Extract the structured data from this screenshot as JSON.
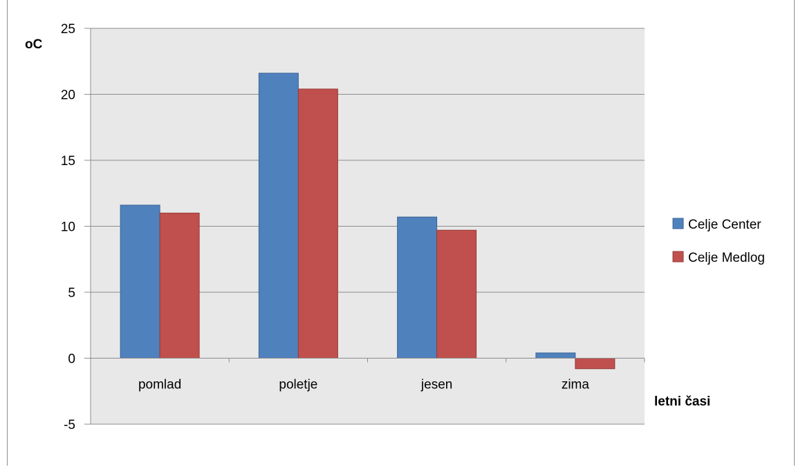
{
  "chart_data": {
    "type": "bar",
    "categories": [
      "pomlad",
      "poletje",
      "jesen",
      "zima"
    ],
    "series": [
      {
        "name": "Celje Center",
        "color": "#4f81bd",
        "values": [
          11.6,
          21.6,
          10.7,
          0.4
        ]
      },
      {
        "name": "Celje Medlog",
        "color": "#c0504d",
        "values": [
          11.0,
          20.4,
          9.7,
          -0.8
        ]
      }
    ],
    "ylabel": "oC",
    "xlabel": "letni časi",
    "ylim": [
      -5,
      25
    ],
    "yticks": [
      -5,
      0,
      5,
      10,
      15,
      20,
      25
    ],
    "grid": true,
    "legend": "right",
    "plot_background": "#e8e8e8",
    "gridline_color": "#8c8c8c"
  }
}
